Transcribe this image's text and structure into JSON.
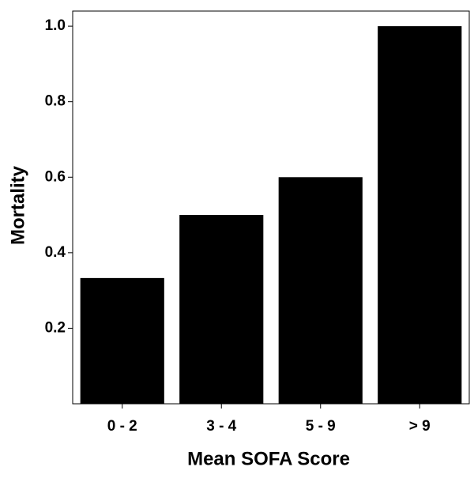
{
  "chart_data": {
    "type": "bar",
    "x_label": "Mean SOFA Score",
    "y_label": "Mortality",
    "categories": [
      "0 - 2",
      "3 - 4",
      "5 - 9",
      "> 9"
    ],
    "values": [
      0.333,
      0.5,
      0.6,
      1.0
    ],
    "color": "#000000",
    "ylim": [
      0,
      1.04
    ],
    "yticks": [
      0.2,
      0.4,
      0.6,
      0.8,
      {
        "value": 1.0,
        "label": "1.0"
      }
    ],
    "grid": false
  }
}
